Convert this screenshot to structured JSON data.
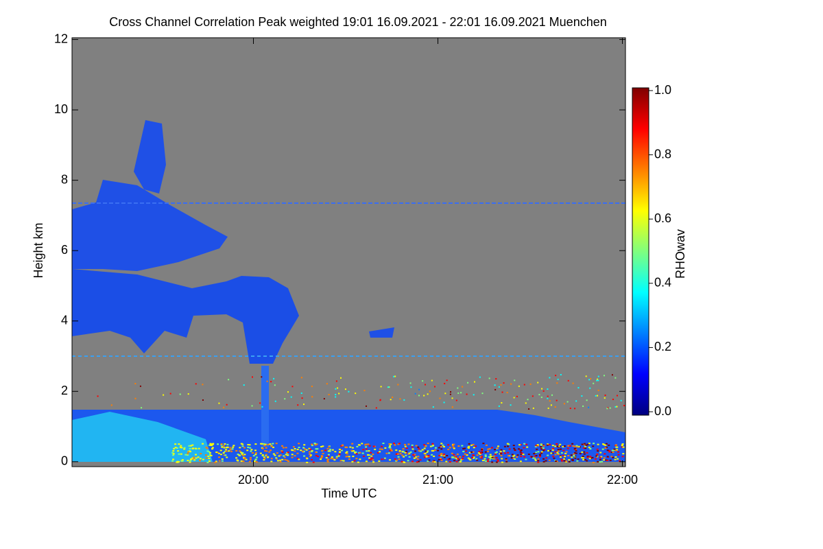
{
  "chart_data": {
    "type": "heatmap",
    "title": "Cross Channel Correlation Peak weighted   19:01 16.09.2021 - 22:01 16.09.2021 Muenchen",
    "x_label": "Time UTC",
    "y_label": "Height km",
    "xlim": [
      19.0167,
      22.0167
    ],
    "xticks": [
      {
        "value": 20,
        "label": "20:00"
      },
      {
        "value": 21,
        "label": "21:00"
      },
      {
        "value": 22,
        "label": "22:00"
      }
    ],
    "ylim": [
      -0.14,
      12.05
    ],
    "yticks": [
      0,
      2,
      4,
      6,
      8,
      10,
      12
    ],
    "colorbar_label": "RHOwav",
    "zlim": [
      0,
      1
    ],
    "zticks": [
      {
        "value": 0,
        "label": "0.0"
      },
      {
        "value": 0.2,
        "label": "0.2"
      },
      {
        "value": 0.4,
        "label": "0.4"
      },
      {
        "value": 0.6,
        "label": "0.6"
      },
      {
        "value": 0.8,
        "label": "0.8"
      },
      {
        "value": 1,
        "label": "1.0"
      }
    ],
    "colorscale": [
      "#00007f",
      "#0000ff",
      "#007fff",
      "#00ffff",
      "#7fff7f",
      "#ffff00",
      "#ff7f00",
      "#ff0000",
      "#7f0000"
    ],
    "background": "#808080"
  }
}
